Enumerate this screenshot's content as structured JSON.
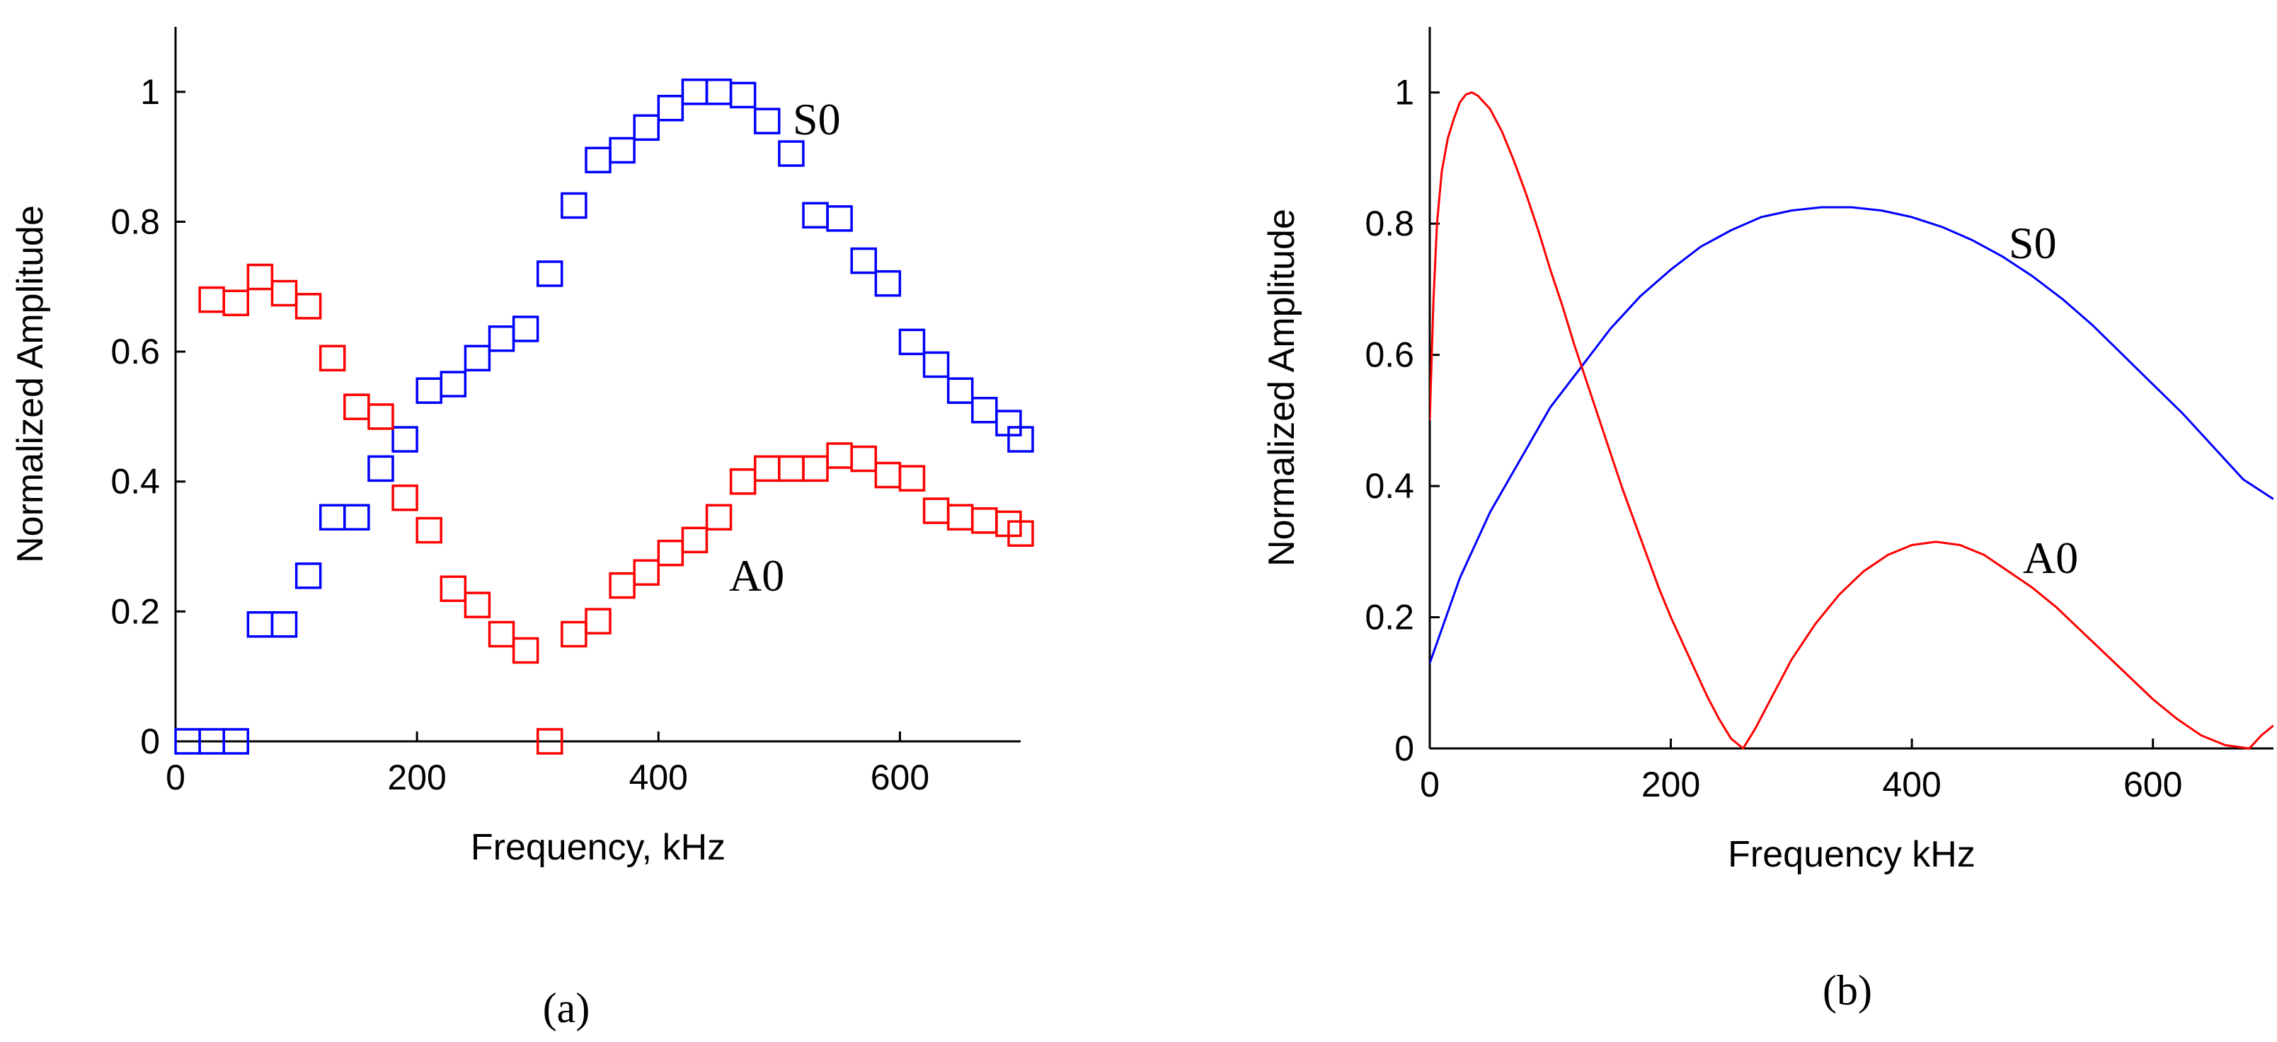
{
  "chart_data": [
    {
      "id": "a",
      "type": "scatter",
      "caption": "(a)",
      "xlabel": "Frequency, kHz",
      "ylabel": "Normalized Amplitude",
      "xlim": [
        0,
        700
      ],
      "ylim": [
        0,
        1.1
      ],
      "xticks": [
        "0",
        "200",
        "400",
        "600"
      ],
      "yticks": [
        "0",
        "0.2",
        "0.4",
        "0.6",
        "0.8",
        "1"
      ],
      "marker": "square",
      "series": [
        {
          "name": "S0",
          "color": "#0000ff",
          "x": [
            10,
            30,
            50,
            70,
            90,
            110,
            130,
            150,
            170,
            190,
            210,
            230,
            250,
            270,
            290,
            310,
            330,
            350,
            370,
            390,
            410,
            430,
            450,
            470,
            490,
            510,
            530,
            550,
            570,
            590,
            610,
            630,
            650,
            670,
            690,
            700
          ],
          "y": [
            0,
            0,
            0,
            0.18,
            0.18,
            0.255,
            0.345,
            0.345,
            0.42,
            0.465,
            0.54,
            0.55,
            0.59,
            0.62,
            0.635,
            0.72,
            0.825,
            0.895,
            0.91,
            0.945,
            0.975,
            1.0,
            1.0,
            0.995,
            0.955,
            0.905,
            0.81,
            0.805,
            0.74,
            0.705,
            0.615,
            0.58,
            0.54,
            0.51,
            0.49,
            0.465
          ]
        },
        {
          "name": "A0",
          "color": "#ff0000",
          "x": [
            30,
            50,
            70,
            90,
            110,
            130,
            150,
            170,
            190,
            210,
            230,
            250,
            270,
            290,
            310,
            330,
            350,
            370,
            390,
            410,
            430,
            450,
            470,
            490,
            510,
            530,
            550,
            570,
            590,
            610,
            630,
            650,
            670,
            690,
            700
          ],
          "y": [
            0.68,
            0.675,
            0.715,
            0.69,
            0.67,
            0.59,
            0.515,
            0.5,
            0.375,
            0.325,
            0.235,
            0.21,
            0.165,
            0.14,
            0,
            0.165,
            0.185,
            0.24,
            0.26,
            0.29,
            0.31,
            0.345,
            0.4,
            0.42,
            0.42,
            0.42,
            0.44,
            0.435,
            0.41,
            0.405,
            0.355,
            0.345,
            0.34,
            0.335,
            0.32
          ]
        }
      ]
    },
    {
      "id": "b",
      "type": "line",
      "caption": "(b)",
      "xlabel": "Frequency  kHz",
      "ylabel": "Normalized Amplitude",
      "xlim": [
        0,
        700
      ],
      "ylim": [
        0,
        1.1
      ],
      "xticks": [
        "0",
        "200",
        "400",
        "600"
      ],
      "yticks": [
        "0",
        "0.2",
        "0.4",
        "0.6",
        "0.8",
        "1"
      ],
      "series": [
        {
          "name": "S0",
          "color": "#0000ff",
          "x": [
            0,
            25,
            50,
            75,
            100,
            125,
            150,
            175,
            200,
            225,
            250,
            275,
            300,
            325,
            350,
            375,
            400,
            425,
            450,
            475,
            500,
            525,
            550,
            575,
            600,
            625,
            650,
            675,
            700
          ],
          "y": [
            0.13,
            0.26,
            0.36,
            0.44,
            0.52,
            0.58,
            0.64,
            0.69,
            0.73,
            0.765,
            0.79,
            0.81,
            0.82,
            0.825,
            0.825,
            0.82,
            0.81,
            0.795,
            0.775,
            0.75,
            0.72,
            0.685,
            0.645,
            0.6,
            0.555,
            0.51,
            0.46,
            0.41,
            0.38
          ]
        },
        {
          "name": "A0",
          "color": "#ff0000",
          "x": [
            0,
            3,
            6,
            10,
            15,
            20,
            25,
            30,
            35,
            40,
            50,
            60,
            70,
            80,
            90,
            100,
            110,
            120,
            130,
            140,
            150,
            160,
            170,
            180,
            190,
            200,
            210,
            220,
            230,
            240,
            250,
            260,
            270,
            280,
            290,
            300,
            320,
            340,
            360,
            380,
            400,
            420,
            440,
            460,
            480,
            500,
            520,
            540,
            560,
            580,
            600,
            620,
            640,
            660,
            680,
            690,
            700
          ],
          "y": [
            0.5,
            0.68,
            0.8,
            0.88,
            0.93,
            0.96,
            0.985,
            0.997,
            1.0,
            0.995,
            0.975,
            0.94,
            0.895,
            0.845,
            0.79,
            0.73,
            0.675,
            0.615,
            0.56,
            0.505,
            0.45,
            0.395,
            0.345,
            0.295,
            0.245,
            0.2,
            0.16,
            0.12,
            0.08,
            0.045,
            0.015,
            0.0,
            0.03,
            0.065,
            0.1,
            0.135,
            0.19,
            0.235,
            0.27,
            0.295,
            0.31,
            0.315,
            0.31,
            0.295,
            0.27,
            0.245,
            0.215,
            0.18,
            0.145,
            0.11,
            0.075,
            0.045,
            0.02,
            0.005,
            0.0,
            0.02,
            0.035
          ]
        }
      ]
    }
  ]
}
